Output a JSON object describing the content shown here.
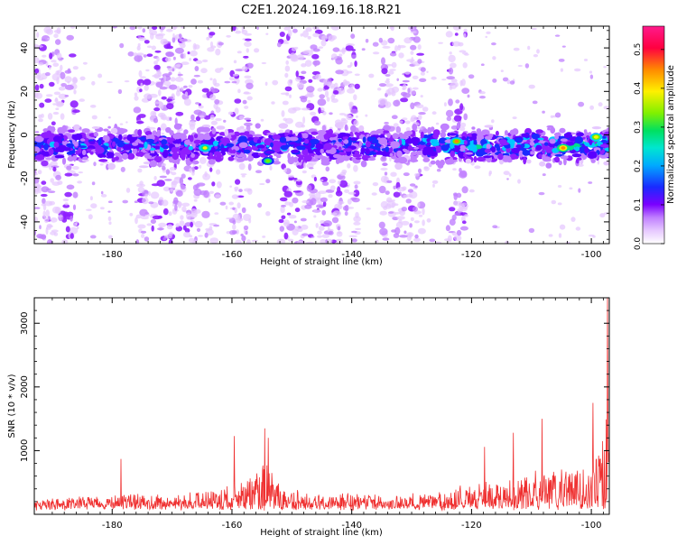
{
  "title": "C2E1.2024.169.16.18.R21",
  "colors": {
    "snr_line": "#ef3030",
    "colormap": [
      "#ffffff",
      "#e6c8ff",
      "#c080ff",
      "#8f1fff",
      "#5a00ff",
      "#1a2aff",
      "#00c8ff",
      "#00e08a",
      "#6ef000",
      "#fff000",
      "#ff8a00",
      "#ff0040",
      "#ff1a8c"
    ]
  },
  "chart_data": [
    {
      "type": "heatmap",
      "title": "C2E1.2024.169.16.18.R21",
      "xlabel": "Height of straight line (km)",
      "ylabel": "Frequency (Hz)",
      "xlim": [
        -193,
        -97
      ],
      "ylim": [
        -50,
        50
      ],
      "x_ticks": [
        -180,
        -160,
        -140,
        -120,
        -100
      ],
      "y_ticks": [
        -40,
        -20,
        0,
        20,
        40
      ],
      "colorbar": {
        "label": "Normalized spectral amplitude",
        "range": [
          0.0,
          0.56
        ],
        "ticks": [
          "0.0",
          "0.1",
          "0.2",
          "0.3",
          "0.4",
          "0.5"
        ]
      },
      "band_center_hz": -5,
      "band_halfwidth_hz": 8,
      "hot_spots": [
        {
          "x": -122.5,
          "y": -3,
          "amp": 0.42
        },
        {
          "x": -104.7,
          "y": -6,
          "amp": 0.44
        },
        {
          "x": -99.2,
          "y": -1,
          "amp": 0.38
        },
        {
          "x": -164.5,
          "y": -6,
          "amp": 0.36
        },
        {
          "x": -154,
          "y": -12,
          "amp": 0.32
        }
      ],
      "background_bands": [
        {
          "x_from": -193,
          "x_to": -186
        },
        {
          "x_from": -176,
          "x_to": -162
        },
        {
          "x_from": -160,
          "x_to": -157
        },
        {
          "x_from": -152,
          "x_to": -139
        },
        {
          "x_from": -135,
          "x_to": -128
        },
        {
          "x_from": -124,
          "x_to": -121
        }
      ],
      "grid": false,
      "legend": "none"
    },
    {
      "type": "line",
      "xlabel": "Height of straight line (km)",
      "ylabel": "SNR (10 * v/v)",
      "xlim": [
        -193,
        -97
      ],
      "ylim": [
        0,
        3400
      ],
      "x_ticks": [
        -180,
        -160,
        -140,
        -120,
        -100
      ],
      "y_ticks": [
        1000,
        2000,
        3000
      ],
      "envelope": {
        "x": [
          -193,
          -188,
          -182,
          -178,
          -175,
          -170,
          -166,
          -162,
          -160,
          -158,
          -156,
          -154.5,
          -153.5,
          -152,
          -148,
          -144,
          -140,
          -136,
          -132,
          -128,
          -125,
          -122,
          -118,
          -114,
          -110,
          -107,
          -104,
          -101,
          -99,
          -98,
          -97.3
        ],
        "y": [
          160,
          170,
          175,
          190,
          210,
          180,
          240,
          300,
          380,
          420,
          560,
          800,
          560,
          330,
          240,
          220,
          220,
          210,
          200,
          230,
          260,
          350,
          420,
          470,
          560,
          600,
          590,
          620,
          900,
          1100,
          1700
        ]
      },
      "spikes": [
        {
          "x": -178.5,
          "y": 870
        },
        {
          "x": -159.6,
          "y": 1230
        },
        {
          "x": -154.5,
          "y": 1350
        },
        {
          "x": -153.9,
          "y": 1200
        },
        {
          "x": -117.8,
          "y": 1060
        },
        {
          "x": -113.0,
          "y": 1280
        },
        {
          "x": -108.2,
          "y": 1500
        },
        {
          "x": -99.7,
          "y": 1750
        },
        {
          "x": -97.3,
          "y": 3400
        }
      ],
      "grid": false,
      "legend": "none"
    }
  ]
}
